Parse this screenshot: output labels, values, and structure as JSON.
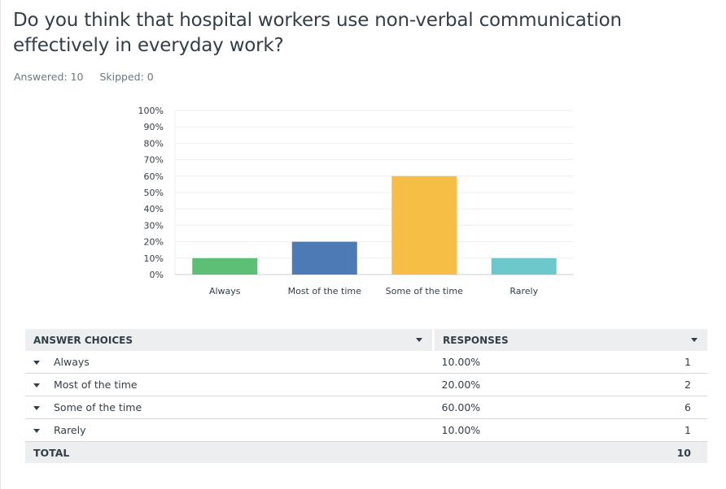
{
  "question": {
    "title": "Do you think that hospital workers use non-verbal communication effectively in everyday work?",
    "answered": "Answered: 10",
    "skipped": "Skipped: 0"
  },
  "chart_data": {
    "type": "bar",
    "categories": [
      "Always",
      "Most of the time",
      "Some of the time",
      "Rarely"
    ],
    "values": [
      10,
      20,
      60,
      10
    ],
    "colors": [
      "#5cbf75",
      "#4d7ab5",
      "#f6be44",
      "#6dc8cb"
    ],
    "ylim": [
      0,
      100
    ],
    "yticks": [
      "0%",
      "10%",
      "20%",
      "30%",
      "40%",
      "50%",
      "60%",
      "70%",
      "80%",
      "90%",
      "100%"
    ],
    "grid": true
  },
  "table": {
    "col_answer": "ANSWER CHOICES",
    "col_responses": "RESPONSES",
    "rows": [
      {
        "label": "Always",
        "percent": "10.00%",
        "count": "1"
      },
      {
        "label": "Most of the time",
        "percent": "20.00%",
        "count": "2"
      },
      {
        "label": "Some of the time",
        "percent": "60.00%",
        "count": "6"
      },
      {
        "label": "Rarely",
        "percent": "10.00%",
        "count": "1"
      }
    ],
    "total_label": "TOTAL",
    "total_value": "10"
  }
}
